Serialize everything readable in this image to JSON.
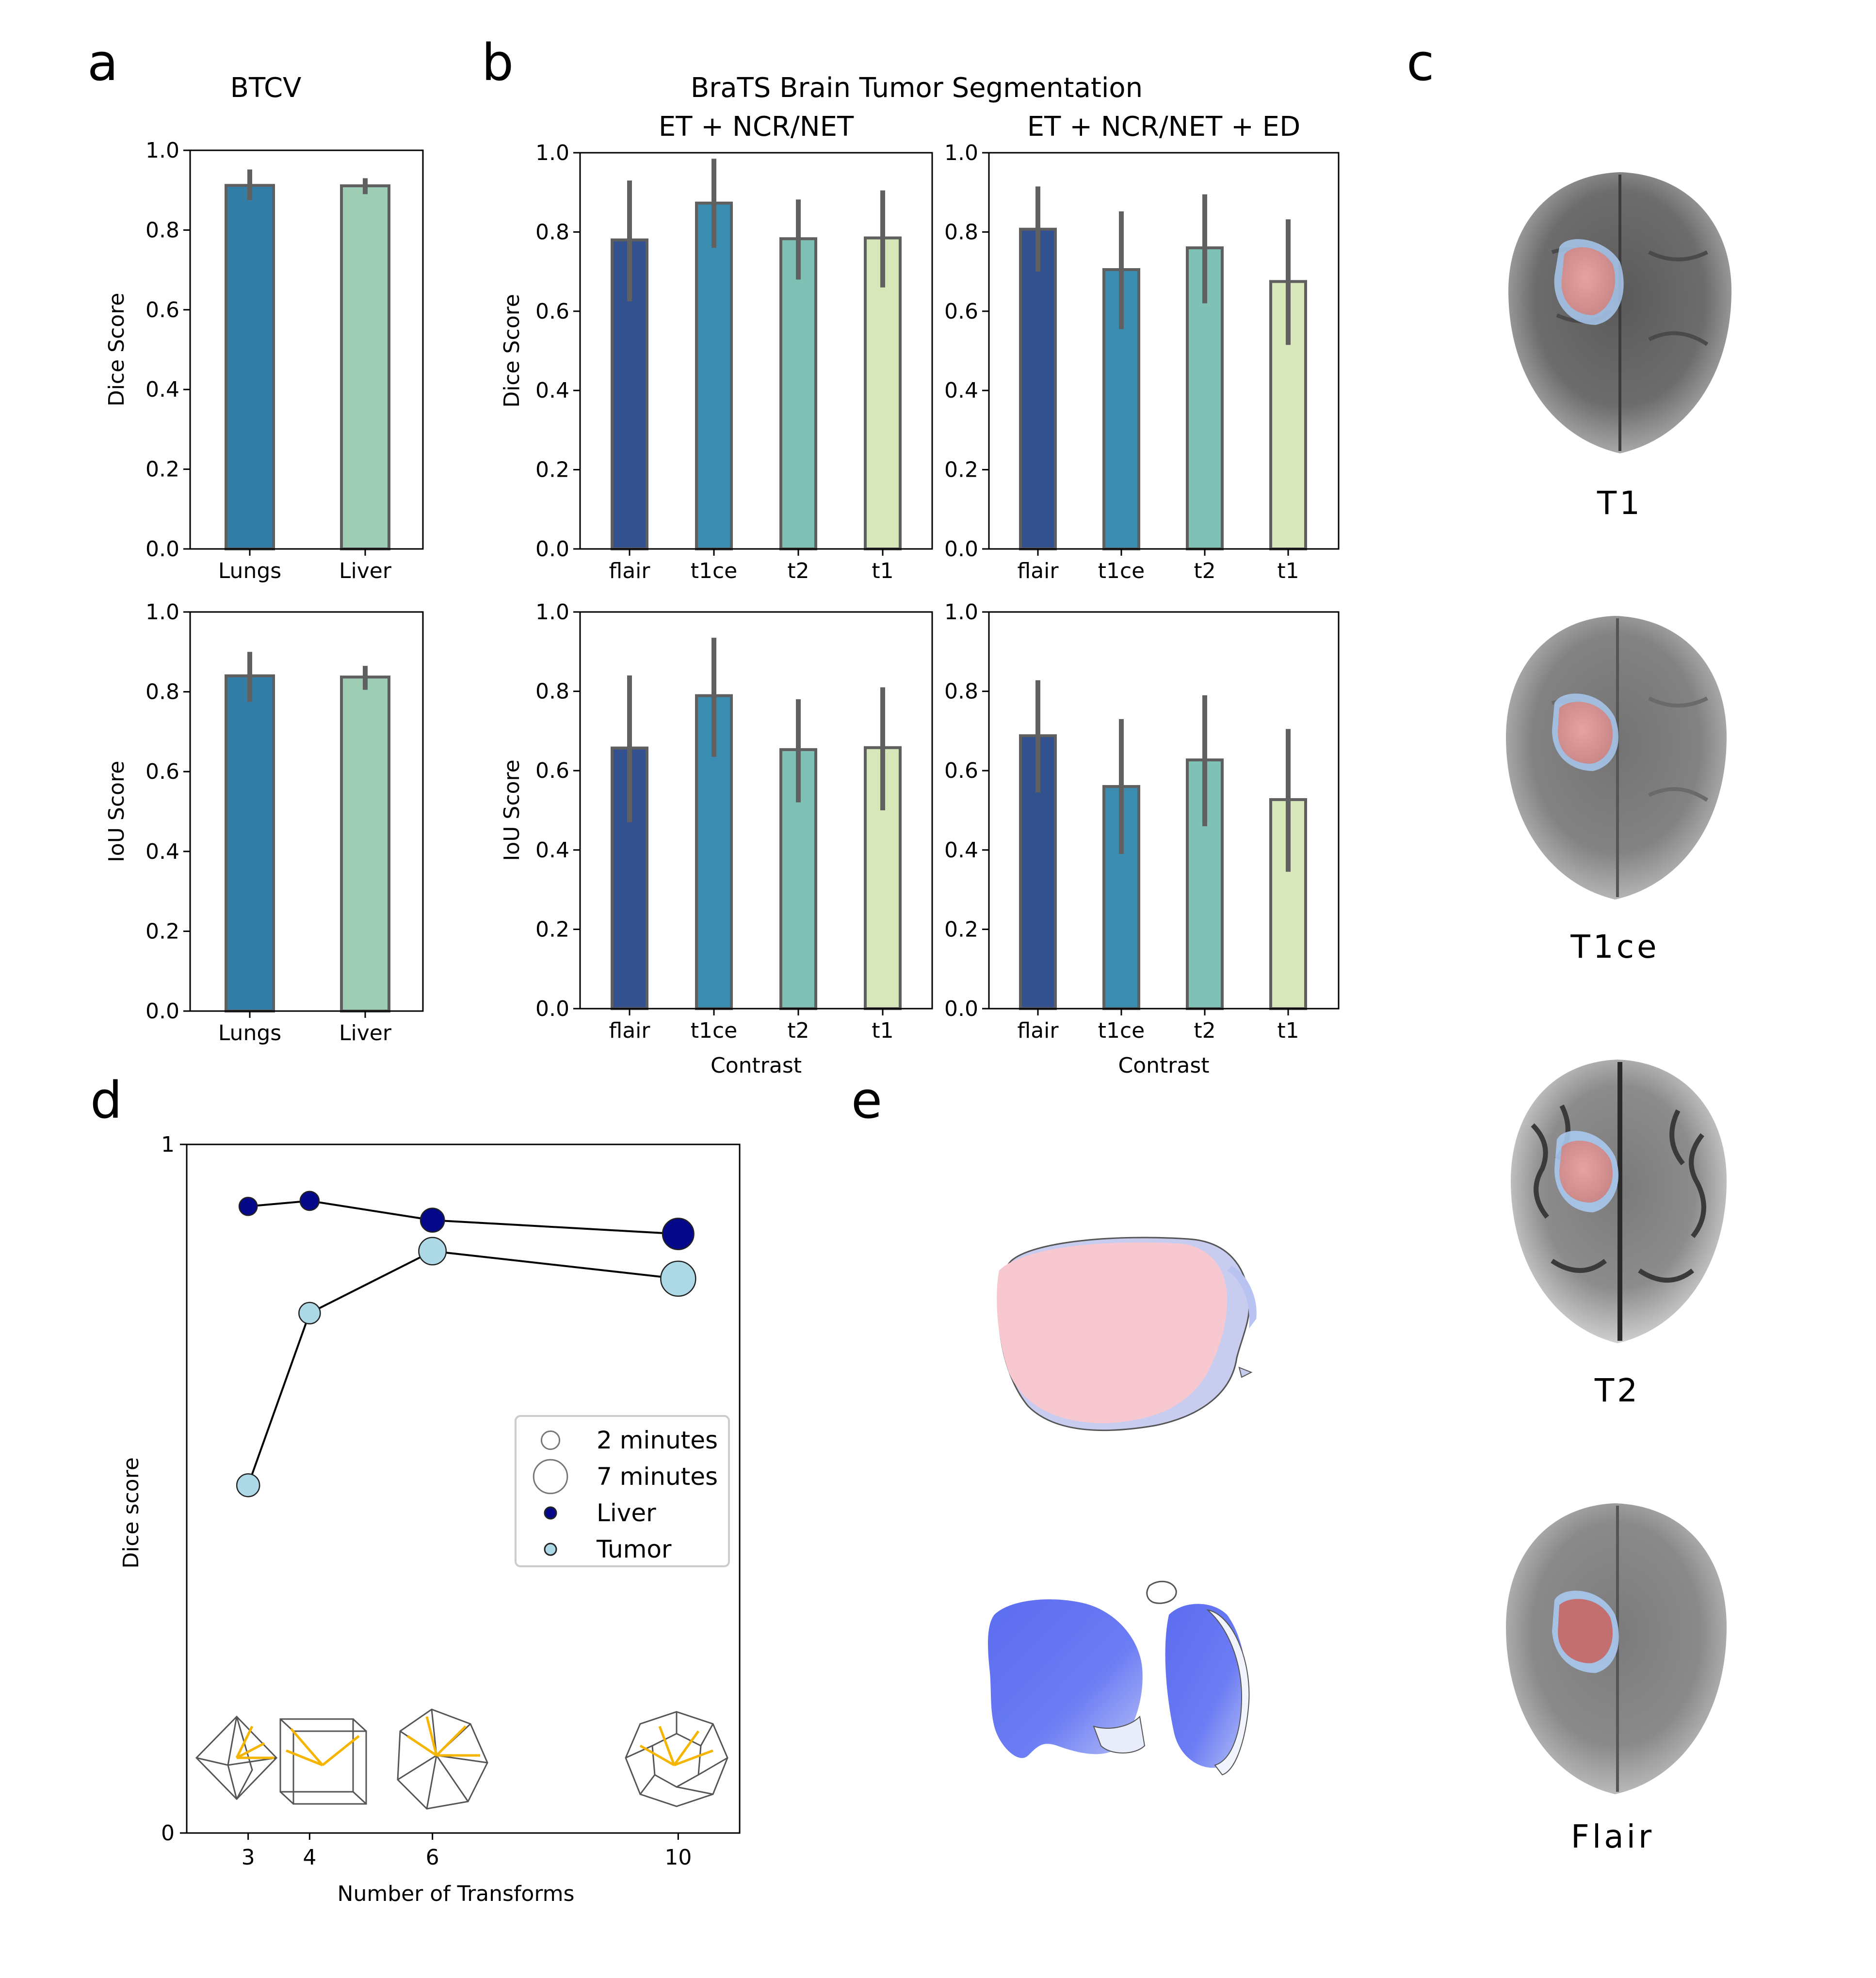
{
  "panel_letters": {
    "a": "a",
    "b": "b",
    "c": "c",
    "d": "d",
    "e": "e"
  },
  "colors": {
    "flair": "#33508f",
    "t1ce": "#3a8db0",
    "t2": "#7fc1b5",
    "t1": "#d7e7ba",
    "lungs": "#327ea6",
    "liver": "#9dcdb5",
    "errorbar": "#606060",
    "liver_dot": "#06088a",
    "tumor_dot": "#add8e6"
  },
  "chart_data": [
    {
      "id": "a_dice",
      "type": "bar",
      "title": "BTCV",
      "ylabel": "Dice Score",
      "xlabel": "",
      "categories": [
        "Lungs",
        "Liver"
      ],
      "values": [
        0.912,
        0.911
      ],
      "err_low": [
        0.875,
        0.89
      ],
      "err_high": [
        0.952,
        0.93
      ],
      "ylim": [
        0,
        1
      ],
      "yticks": [
        "0.0",
        "0.2",
        "0.4",
        "0.6",
        "0.8",
        "1.0"
      ]
    },
    {
      "id": "a_iou",
      "type": "bar",
      "title": "",
      "ylabel": "IoU Score",
      "xlabel": "",
      "categories": [
        "Lungs",
        "Liver"
      ],
      "values": [
        0.84,
        0.837
      ],
      "err_low": [
        0.775,
        0.805
      ],
      "err_high": [
        0.9,
        0.865
      ],
      "ylim": [
        0,
        1
      ],
      "yticks": [
        "0.0",
        "0.2",
        "0.4",
        "0.6",
        "0.8",
        "1.0"
      ]
    },
    {
      "id": "b_dice_core",
      "type": "bar",
      "title": "ET + NCR/NET",
      "ylabel": "Dice Score",
      "xlabel": "",
      "categories": [
        "flair",
        "t1ce",
        "t2",
        "t1"
      ],
      "values": [
        0.78,
        0.873,
        0.783,
        0.785
      ],
      "err_low": [
        0.625,
        0.76,
        0.68,
        0.66
      ],
      "err_high": [
        0.93,
        0.985,
        0.882,
        0.905
      ],
      "ylim": [
        0,
        1
      ],
      "yticks": [
        "0.0",
        "0.2",
        "0.4",
        "0.6",
        "0.8",
        "1.0"
      ]
    },
    {
      "id": "b_dice_whole",
      "type": "bar",
      "title": "ET + NCR/NET + ED",
      "ylabel": "",
      "xlabel": "",
      "categories": [
        "flair",
        "t1ce",
        "t2",
        "t1"
      ],
      "values": [
        0.807,
        0.705,
        0.76,
        0.675
      ],
      "err_low": [
        0.7,
        0.555,
        0.62,
        0.515
      ],
      "err_high": [
        0.915,
        0.852,
        0.895,
        0.832
      ],
      "ylim": [
        0,
        1
      ],
      "yticks": [
        "0.0",
        "0.2",
        "0.4",
        "0.6",
        "0.8",
        "1.0"
      ]
    },
    {
      "id": "b_iou_core",
      "type": "bar",
      "title": "",
      "ylabel": "IoU Score",
      "xlabel": "Contrast",
      "categories": [
        "flair",
        "t1ce",
        "t2",
        "t1"
      ],
      "values": [
        0.657,
        0.789,
        0.653,
        0.658
      ],
      "err_low": [
        0.47,
        0.635,
        0.52,
        0.5
      ],
      "err_high": [
        0.84,
        0.935,
        0.78,
        0.81
      ],
      "ylim": [
        0,
        1
      ],
      "yticks": [
        "0.0",
        "0.2",
        "0.4",
        "0.6",
        "0.8",
        "1.0"
      ]
    },
    {
      "id": "b_iou_whole",
      "type": "bar",
      "title": "",
      "ylabel": "",
      "xlabel": "Contrast",
      "categories": [
        "flair",
        "t1ce",
        "t2",
        "t1"
      ],
      "values": [
        0.688,
        0.56,
        0.627,
        0.527
      ],
      "err_low": [
        0.545,
        0.39,
        0.46,
        0.345
      ],
      "err_high": [
        0.828,
        0.73,
        0.79,
        0.705
      ],
      "ylim": [
        0,
        1
      ],
      "yticks": [
        "0.0",
        "0.2",
        "0.4",
        "0.6",
        "0.8",
        "1.0"
      ]
    },
    {
      "id": "d_scatter",
      "type": "scatter",
      "xlabel": "Number of Transforms",
      "ylabel": "Dice score",
      "xlim": [
        2,
        11
      ],
      "ylim": [
        0,
        1
      ],
      "xticks": [
        "3",
        "4",
        "6",
        "10"
      ],
      "yticks": [
        "0",
        "1"
      ],
      "series": [
        {
          "name": "Liver",
          "x": [
            3,
            4,
            6,
            10
          ],
          "y": [
            0.91,
            0.918,
            0.89,
            0.87
          ],
          "minutes": [
            2.0,
            2.2,
            3.5,
            6.0
          ]
        },
        {
          "name": "Tumor",
          "x": [
            3,
            4,
            6,
            10
          ],
          "y": [
            0.505,
            0.755,
            0.845,
            0.805
          ],
          "minutes": [
            3.2,
            2.8,
            4.6,
            7.5
          ]
        }
      ],
      "size_legend": [
        {
          "label": "2 minutes",
          "minutes": 2
        },
        {
          "label": "7 minutes",
          "minutes": 7
        }
      ]
    }
  ],
  "panel_b_title": "BraTS Brain Tumor Segmentation",
  "brain_labels": [
    "T1",
    "T1ce",
    "T2",
    "Flair"
  ]
}
